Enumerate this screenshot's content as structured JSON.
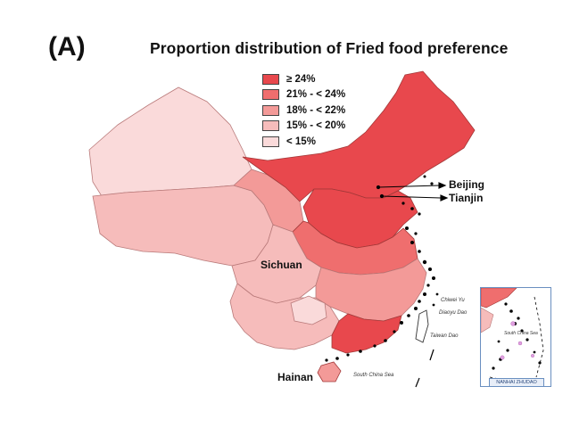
{
  "panel_label": "(A)",
  "title": "Proportion distribution of Fried food preference",
  "legend": [
    {
      "label": "≥ 24%",
      "color": "#e8484d"
    },
    {
      "label": "21% - < 24%",
      "color": "#ef6e6e"
    },
    {
      "label": "18% - < 22%",
      "color": "#f39a98"
    },
    {
      "label": "15% - < 20%",
      "color": "#f6bcbb"
    },
    {
      "label": "< 15%",
      "color": "#fadada"
    }
  ],
  "places": {
    "beijing": "Beijing",
    "tianjin": "Tianjin",
    "sichuan": "Sichuan",
    "hainan": "Hainan"
  },
  "sea_labels": {
    "south_china_sea": "South China Sea",
    "chiwei_yu": "Chiwei Yu",
    "diaoyu_dao": "Diaoyu Dao",
    "taiwan_dao": "Taiwan Dao",
    "inset_south_china_sea": "South China Sea",
    "inset_footer": "NANHAI ZHUDAO"
  },
  "colors": {
    "border": "#b06c6c",
    "outline": "#7a3b3b",
    "dots": "#000000"
  }
}
